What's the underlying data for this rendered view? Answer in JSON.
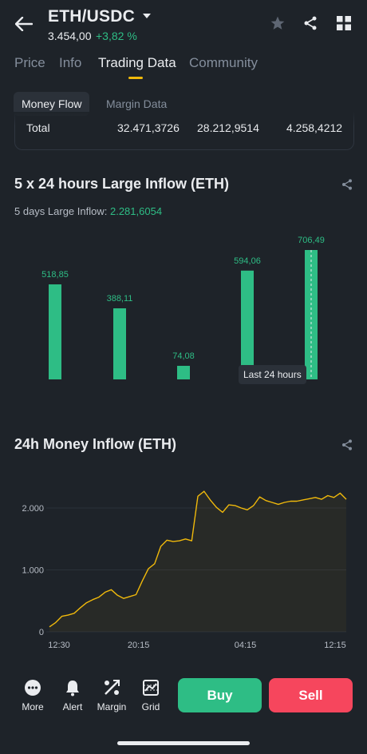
{
  "header": {
    "pair": "ETH/USDC",
    "price": "3.454,00",
    "change": "+3,82 %"
  },
  "tabs": [
    "Price",
    "Info",
    "Trading Data",
    "Community"
  ],
  "active_tab": "Trading Data",
  "subtabs": [
    "Money Flow",
    "Margin Data"
  ],
  "active_subtab": "Money Flow",
  "table": {
    "label": "Total",
    "values": [
      "32.471,3726",
      "28.212,9514",
      "4.258,4212"
    ]
  },
  "large_inflow": {
    "title": "5 x 24 hours Large Inflow (ETH)",
    "summary_label": "5 days Large Inflow:",
    "summary_value": "2.281,6054",
    "tooltip": "Last 24 hours"
  },
  "money_inflow": {
    "title": "24h Money Inflow (ETH)"
  },
  "bottom_nav": {
    "items": [
      {
        "label": "More",
        "icon": "more-icon"
      },
      {
        "label": "Alert",
        "icon": "bell-icon"
      },
      {
        "label": "Margin",
        "icon": "margin-icon"
      },
      {
        "label": "Grid",
        "icon": "grid-bot-icon"
      }
    ],
    "buy": "Buy",
    "sell": "Sell"
  },
  "colors": {
    "accent": "#f0b90b",
    "up": "#2ebd85",
    "buy": "#2ebd85",
    "sell": "#f6465d",
    "background": "#1e2329"
  },
  "chart_data": [
    {
      "type": "bar",
      "title": "5 x 24 hours Large Inflow (ETH)",
      "categories": [
        "",
        "",
        "",
        "",
        "Last 24 hours"
      ],
      "values": [
        518.85,
        388.11,
        74.08,
        594.06,
        706.49
      ],
      "labels": [
        "518,85",
        "388,11",
        "74,08",
        "594,06",
        "706,49"
      ],
      "ylim": [
        0,
        706.49
      ],
      "grid": false
    },
    {
      "type": "area",
      "title": "24h Money Inflow (ETH)",
      "xlabel": "",
      "ylabel": "",
      "x_ticks": [
        "12:30",
        "20:15",
        "04:15",
        "12:15"
      ],
      "y_ticks": [
        0,
        1000,
        2000
      ],
      "y_tick_labels": [
        "0",
        "1.000",
        "2.000"
      ],
      "ylim": [
        0,
        2400
      ],
      "grid": true,
      "x": [
        0,
        1,
        2,
        3,
        4,
        5,
        6,
        7,
        8,
        9,
        10,
        11,
        12,
        13,
        14,
        15,
        16,
        17,
        18,
        19,
        20,
        21,
        22,
        23,
        24,
        25,
        26,
        27,
        28,
        29,
        30,
        31,
        32,
        33,
        34,
        35,
        36,
        37,
        38,
        39,
        40,
        41,
        42,
        43,
        44,
        45,
        46,
        47,
        48
      ],
      "y": [
        80,
        150,
        250,
        270,
        300,
        390,
        470,
        520,
        560,
        640,
        680,
        590,
        540,
        570,
        600,
        820,
        1020,
        1100,
        1380,
        1480,
        1460,
        1470,
        1500,
        1470,
        2190,
        2270,
        2130,
        2010,
        1930,
        2050,
        2040,
        2000,
        1970,
        2040,
        2180,
        2120,
        2090,
        2060,
        2090,
        2110,
        2110,
        2130,
        2150,
        2170,
        2140,
        2200,
        2170,
        2240,
        2140
      ]
    }
  ]
}
